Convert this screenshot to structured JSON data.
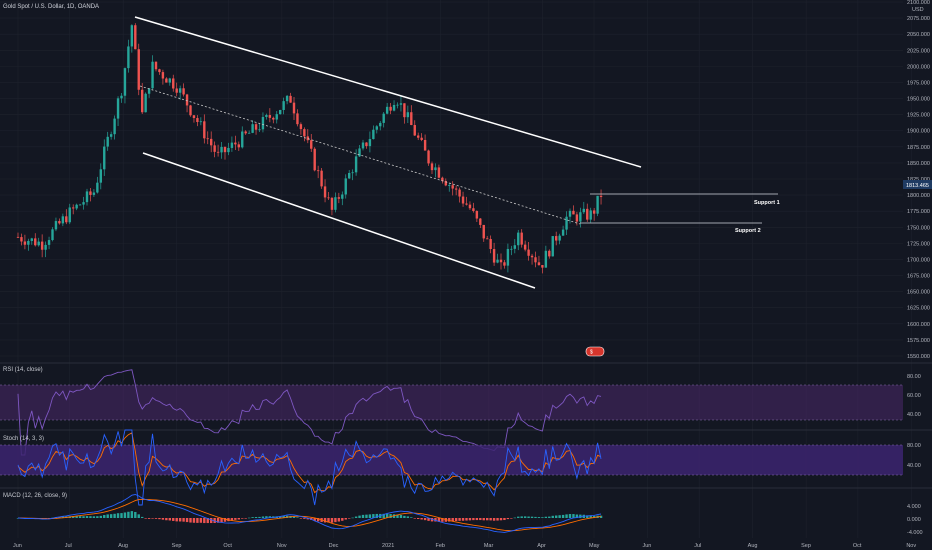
{
  "header": {
    "symbol_title": "Gold Spot / U.S. Dollar, 1D, OANDA",
    "currency": "USD"
  },
  "price_scale": {
    "ticks": [
      "2100.000",
      "2075.000",
      "2050.000",
      "2025.000",
      "2000.000",
      "1975.000",
      "1950.000",
      "1925.000",
      "1900.000",
      "1875.000",
      "1850.000",
      "1825.000",
      "1800.000",
      "1775.000",
      "1750.000",
      "1725.000",
      "1700.000",
      "1675.000",
      "1650.000",
      "1625.000",
      "1600.000",
      "1575.000",
      "1550.000"
    ],
    "last_price": "1813.465",
    "last_price_color": "#1f3b63"
  },
  "time_axis": {
    "labels": [
      "Jun",
      "Jul",
      "Aug",
      "Sep",
      "Oct",
      "Nov",
      "Dec",
      "2021",
      "Feb",
      "Mar",
      "Apr",
      "May",
      "Jun",
      "Jul",
      "Aug",
      "Sep",
      "Oct",
      "Nov"
    ]
  },
  "annotations": {
    "support1": "Support 1",
    "support2": "Support 2",
    "event_badge": "$"
  },
  "indicators": {
    "rsi": {
      "title": "RSI (14, close)",
      "ticks": [
        "80.00",
        "60.00",
        "40.00"
      ],
      "line_color": "#7e57c2"
    },
    "stoch": {
      "title": "Stoch (14, 3, 3)",
      "ticks": [
        "80.00",
        "40.00"
      ],
      "k_color": "#2962ff",
      "d_color": "#ff6d00"
    },
    "macd": {
      "title": "MACD (12, 26, close, 9)",
      "ticks": [
        "4.000",
        "0.000",
        "-4.000"
      ],
      "macd_color": "#2962ff",
      "signal_color": "#ff6d00"
    }
  },
  "colors": {
    "up": "#26a69a",
    "down": "#ef5350",
    "channel": "#ffffff",
    "rsi_band": "#4a2869",
    "stoch_band": "#3c2470"
  },
  "chart_data": {
    "type": "candlestick",
    "title": "Gold Spot / U.S. Dollar, 1D, OANDA",
    "x_range": [
      "2020-06-01",
      "2021-11-01"
    ],
    "ylim": [
      1550,
      2100
    ],
    "close_path": [
      {
        "date": "2020-06-01",
        "close": 1735
      },
      {
        "date": "2020-06-15",
        "close": 1725
      },
      {
        "date": "2020-06-30",
        "close": 1770
      },
      {
        "date": "2020-07-15",
        "close": 1805
      },
      {
        "date": "2020-07-31",
        "close": 1965
      },
      {
        "date": "2020-08-06",
        "close": 2065
      },
      {
        "date": "2020-08-12",
        "close": 1925
      },
      {
        "date": "2020-08-18",
        "close": 2000
      },
      {
        "date": "2020-09-01",
        "close": 1970
      },
      {
        "date": "2020-09-25",
        "close": 1860
      },
      {
        "date": "2020-10-20",
        "close": 1910
      },
      {
        "date": "2020-11-06",
        "close": 1950
      },
      {
        "date": "2020-11-30",
        "close": 1775
      },
      {
        "date": "2020-12-15",
        "close": 1860
      },
      {
        "date": "2021-01-06",
        "close": 1955
      },
      {
        "date": "2021-01-25",
        "close": 1855
      },
      {
        "date": "2021-02-18",
        "close": 1780
      },
      {
        "date": "2021-03-08",
        "close": 1685
      },
      {
        "date": "2021-03-18",
        "close": 1740
      },
      {
        "date": "2021-03-31",
        "close": 1690
      },
      {
        "date": "2021-04-15",
        "close": 1765
      },
      {
        "date": "2021-04-30",
        "close": 1770
      },
      {
        "date": "2021-05-07",
        "close": 1813
      }
    ],
    "channel": {
      "upper": [
        {
          "date": "2020-08-06",
          "value": 2075
        },
        {
          "date": "2021-06-01",
          "value": 1844
        }
      ],
      "lower": [
        {
          "date": "2020-08-12",
          "value": 1862
        },
        {
          "date": "2021-04-05",
          "value": 1662
        }
      ],
      "mid": [
        {
          "date": "2020-08-08",
          "value": 1968
        },
        {
          "date": "2021-05-04",
          "value": 1753
        }
      ]
    },
    "support_levels": [
      {
        "label": "Support 1",
        "value": 1800
      },
      {
        "label": "Support 2",
        "value": 1756
      }
    ],
    "last_value": 1813.465
  }
}
